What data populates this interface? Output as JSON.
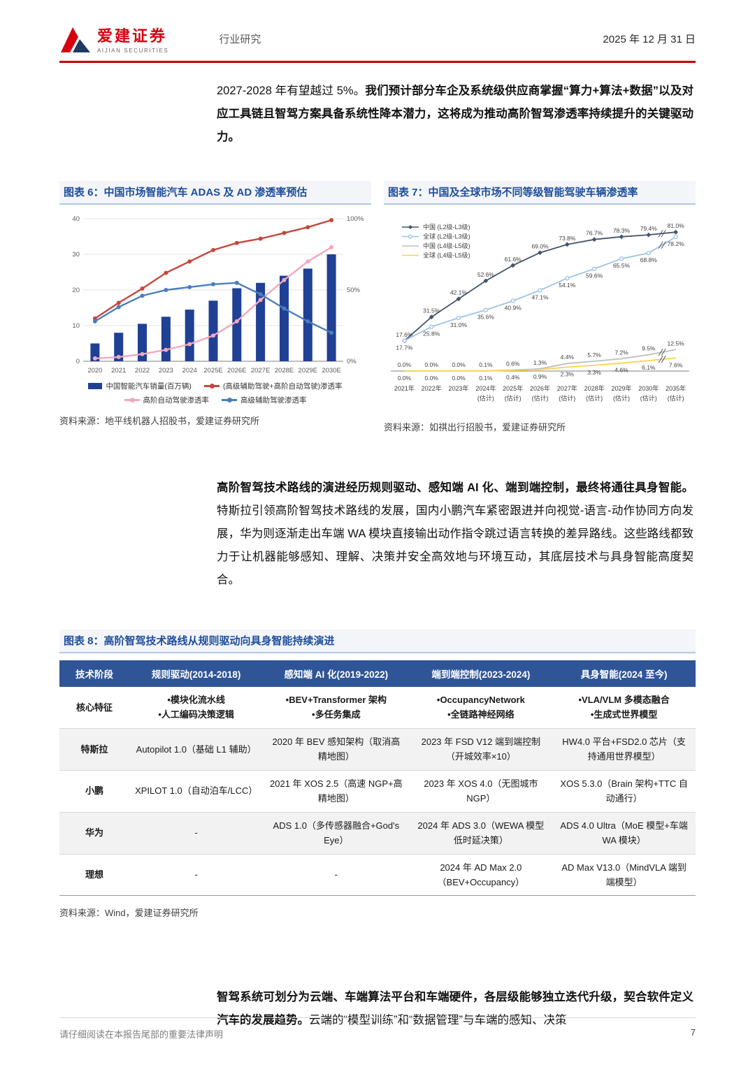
{
  "header": {
    "brand": "爱建证券",
    "brand_sub": "AIJIAN SECURITIES",
    "doc_type": "行业研究",
    "date": "2025 年 12 月 31 日"
  },
  "paragraphs": {
    "p1": [
      {
        "t": "2027-2028 年有望越过 5%。",
        "b": false
      },
      {
        "t": "我们预计部分车企及系统级供应商掌握“算力+算法+数据”以及对应工具链且智驾方案具备系统性降本潜力，这将成为推动高阶智驾渗透率持续提升的关键驱动力。",
        "b": true
      }
    ],
    "p2": [
      {
        "t": "高阶智驾技术路线的演进经历规则驱动、感知端 AI 化、端到端控制，最终将通往具身智能。",
        "b": true
      },
      {
        "t": "特斯拉引领高阶智驾技术路线的发展，国内小鹏汽车紧密跟进并向视觉-语言-动作协同方向发展，华为则逐渐走出车端 WA 模块直接输出动作指令跳过语言转换的差异路线。这些路线都致力于让机器能够感知、理解、决策并安全高效地与环境互动，其底层技术与具身智能高度契合。",
        "b": false
      }
    ],
    "p3": [
      {
        "t": "智驾系统可划分为云端、车端算法平台和车端硬件，各层级能够独立迭代升级，契合软件定义汽车的发展趋势。",
        "b": true
      },
      {
        "t": "云端的“模型训练”和“数据管理”与车端的感知、决策",
        "b": false
      }
    ]
  },
  "chart6": {
    "title": "图表 6：中国市场智能汽车 ADAS 及 AD 渗透率预估",
    "source": "资料来源：地平线机器人招股书，爱建证券研究所",
    "chart_data": {
      "type": "bar+line",
      "categories": [
        "2020",
        "2021",
        "2022",
        "2023",
        "2024",
        "2025E",
        "2026E",
        "2027E",
        "2028E",
        "2029E",
        "2030E"
      ],
      "left_axis": {
        "max": 40,
        "ticks": [
          0,
          10,
          20,
          30,
          40
        ]
      },
      "right_axis": {
        "max": 100,
        "ticks": [
          {
            "v": 0,
            "label": "0%"
          },
          {
            "v": 50,
            "label": "50%"
          },
          {
            "v": 100,
            "label": "100%"
          }
        ]
      },
      "bars": {
        "name": "中国智能汽车销量(百万辆)",
        "color": "#1F4095",
        "values": [
          5,
          8,
          10.5,
          12.5,
          14.5,
          17,
          20.5,
          22,
          24,
          26,
          30
        ]
      },
      "lines": [
        {
          "name": "(高级辅助驾驶+高阶自动驾驶)渗透率",
          "color": "#C4473D",
          "values": [
            30,
            41,
            51,
            62,
            70,
            78,
            83,
            86,
            90,
            94,
            99
          ]
        },
        {
          "name": "高阶自动驾驶渗透率",
          "color": "#F2A8BE",
          "values": [
            2,
            3,
            5,
            8,
            12,
            18,
            28,
            43,
            57,
            70,
            80
          ]
        },
        {
          "name": "高级辅助驾驶渗透率",
          "color": "#4A7EBB",
          "values": [
            28,
            38,
            46,
            50,
            52,
            54,
            55,
            47,
            37,
            28,
            20
          ]
        }
      ]
    }
  },
  "chart7": {
    "title": "图表 7：中国及全球市场不同等级智能驾驶车辆渗透率",
    "source": "资料来源：如祺出行招股书，爱建证券研究所",
    "chart_data": {
      "type": "line",
      "years": [
        "2021年",
        "2022年",
        "2023年",
        "2024年",
        "2025年",
        "2026年",
        "2027年",
        "2028年",
        "2029年",
        "2030年",
        "2035年"
      ],
      "notes": [
        "",
        "",
        "",
        "(估计)",
        "(估计)",
        "(估计)",
        "(估计)",
        "(估计)",
        "(估计)",
        "(估计)",
        "(估计)"
      ],
      "series": [
        {
          "name": "中国 (L2级-L3级)",
          "color": "#44546A",
          "marker": "diamond",
          "label_pos": "above",
          "values": [
            17.6,
            31.5,
            42.1,
            52.6,
            61.6,
            69.0,
            73.8,
            76.7,
            78.3,
            79.4,
            81.0
          ]
        },
        {
          "name": "全球 (L2级-L3级)",
          "color": "#9DC3E6",
          "marker": "circle",
          "label_pos": "below",
          "values": [
            17.7,
            25.8,
            31.0,
            35.6,
            40.9,
            47.1,
            54.1,
            59.6,
            65.5,
            68.8,
            78.2
          ]
        },
        {
          "name": "中国 (L4级-L5级)",
          "color": "#BFBFBF",
          "marker": "none",
          "label_pos": "above",
          "values": [
            0.0,
            0.0,
            0.0,
            0.1,
            0.6,
            1.3,
            4.4,
            5.7,
            7.2,
            9.5,
            12.5
          ]
        },
        {
          "name": "全球 (L4级-L5级)",
          "color": "#FFD24D",
          "marker": "none",
          "label_pos": "below",
          "values": [
            0.0,
            0.0,
            0.0,
            0.1,
            0.4,
            0.9,
            2.3,
            3.3,
            4.6,
            6.1,
            7.6
          ]
        }
      ]
    }
  },
  "table8": {
    "title": "图表 8：高阶智驾技术路线从规则驱动向具身智能持续演进",
    "source": "资料来源：Wind，爱建证券研究所",
    "headers": [
      "技术阶段",
      "规则驱动(2014-2018)",
      "感知端 AI 化(2019-2022)",
      "端到端控制(2023-2024)",
      "具身智能(2024 至今)"
    ],
    "rows": [
      {
        "label": "核心特征",
        "bold": true,
        "cells": [
          [
            "•模块化流水线",
            "•人工编码决策逻辑"
          ],
          [
            "•BEV+Transformer 架构",
            "•多任务集成"
          ],
          [
            "•OccupancyNetwork",
            "•全链路神经网络"
          ],
          [
            "•VLA/VLM 多模态融合",
            "•生成式世界模型"
          ]
        ]
      },
      {
        "label": "特斯拉",
        "bold": false,
        "cells": [
          [
            "Autopilot 1.0（基础 L1 辅助）"
          ],
          [
            "2020 年 BEV 感知架构（取消高精地图）"
          ],
          [
            "2023 年 FSD V12 端到端控制（开城效率×10）"
          ],
          [
            "HW4.0 平台+FSD2.0 芯片（支持通用世界模型）"
          ]
        ]
      },
      {
        "label": "小鹏",
        "bold": false,
        "cells": [
          [
            "XPILOT 1.0（自动泊车/LCC）"
          ],
          [
            "2021 年 XOS 2.5（高速 NGP+高精地图）"
          ],
          [
            "2023 年 XOS 4.0（无图城市 NGP）"
          ],
          [
            "XOS 5.3.0（Brain 架构+TTC 自动通行）"
          ]
        ]
      },
      {
        "label": "华为",
        "bold": false,
        "cells": [
          [
            "-"
          ],
          [
            "ADS 1.0（多传感器融合+God's Eye）"
          ],
          [
            "2024 年 ADS 3.0（WEWA 模型低时延决策）"
          ],
          [
            "ADS 4.0 Ultra（MoE 模型+车端 WA 模块）"
          ]
        ]
      },
      {
        "label": "理想",
        "bold": false,
        "cells": [
          [
            "-"
          ],
          [
            "-"
          ],
          [
            "2024 年 AD Max 2.0（BEV+Occupancy）"
          ],
          [
            "AD Max V13.0（MindVLA 端到端模型）"
          ]
        ]
      }
    ]
  },
  "footer": {
    "disclaimer": "请仔细阅读在本报告尾部的重要法律声明",
    "page": "7"
  }
}
